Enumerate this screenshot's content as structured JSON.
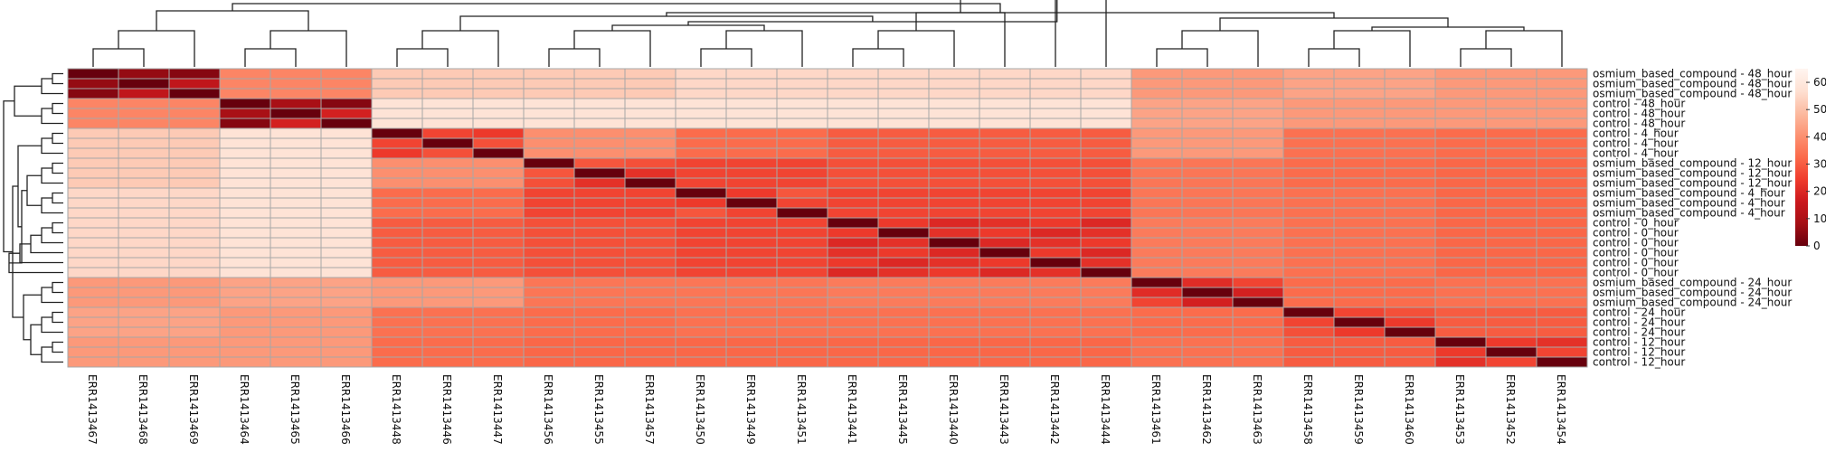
{
  "chart_data": {
    "type": "heatmap",
    "title": "",
    "columns": [
      "ERR1413467",
      "ERR1413468",
      "ERR1413469",
      "ERR1413464",
      "ERR1413465",
      "ERR1413466",
      "ERR1413448",
      "ERR1413446",
      "ERR1413447",
      "ERR1413456",
      "ERR1413455",
      "ERR1413457",
      "ERR1413450",
      "ERR1413449",
      "ERR1413451",
      "ERR1413441",
      "ERR1413445",
      "ERR1413440",
      "ERR1413443",
      "ERR1413442",
      "ERR1413444",
      "ERR1413461",
      "ERR1413462",
      "ERR1413463",
      "ERR1413458",
      "ERR1413459",
      "ERR1413460",
      "ERR1413453",
      "ERR1413452",
      "ERR1413454"
    ],
    "rows": [
      "osmium_based_compound - 48_hour",
      "osmium_based_compound - 48_hour",
      "osmium_based_compound - 48_hour",
      "control - 48_hour",
      "control - 48_hour",
      "control - 48_hour",
      "control - 4_hour",
      "control - 4_hour",
      "control - 4_hour",
      "osmium_based_compound - 12_hour",
      "osmium_based_compound - 12_hour",
      "osmium_based_compound - 12_hour",
      "osmium_based_compound - 4_hour",
      "osmium_based_compound - 4_hour",
      "osmium_based_compound - 4_hour",
      "control - 0_hour",
      "control - 0_hour",
      "control - 0_hour",
      "control - 0_hour",
      "control - 0_hour",
      "control - 0_hour",
      "osmium_based_compound - 24_hour",
      "osmium_based_compound - 24_hour",
      "osmium_based_compound - 24_hour",
      "control - 24_hour",
      "control - 24_hour",
      "control - 24_hour",
      "control - 12_hour",
      "control - 12_hour",
      "control - 12_hour"
    ],
    "group_sizes": [
      3,
      3,
      3,
      3,
      3,
      6,
      3,
      3,
      3
    ],
    "block_values": [
      [
        0,
        38,
        52,
        52,
        55,
        55,
        42,
        44,
        42
      ],
      [
        38,
        0,
        58,
        58,
        58,
        58,
        44,
        42,
        42
      ],
      [
        52,
        58,
        0,
        40,
        33,
        30,
        42,
        34,
        33
      ],
      [
        52,
        58,
        40,
        0,
        26,
        28,
        35,
        33,
        32
      ],
      [
        55,
        58,
        33,
        26,
        0,
        26,
        35,
        34,
        32
      ],
      [
        55,
        58,
        30,
        28,
        26,
        0,
        36,
        34,
        32
      ],
      [
        42,
        44,
        42,
        35,
        35,
        36,
        0,
        33,
        34
      ],
      [
        44,
        42,
        34,
        33,
        34,
        34,
        33,
        0,
        30
      ],
      [
        42,
        42,
        33,
        32,
        32,
        32,
        34,
        30,
        0
      ]
    ],
    "intra_group_values": [
      [
        10,
        2,
        0
      ],
      [
        14,
        5,
        0
      ],
      [
        24,
        22,
        20
      ],
      [
        18,
        25,
        24
      ],
      [
        22,
        20,
        25
      ],
      [
        18,
        20,
        16
      ],
      [
        14,
        17,
        22
      ],
      [
        20,
        22,
        24
      ],
      [
        22,
        20,
        18
      ]
    ],
    "color_scale": {
      "min": 0,
      "max": 65,
      "stops": [
        "#67000d",
        "#a50f15",
        "#cb181d",
        "#ef3b2c",
        "#fb6a4a",
        "#fc9272",
        "#fcbba1",
        "#fee0d2",
        "#fff5f0"
      ]
    },
    "legend_ticks": [
      0,
      10,
      20,
      30,
      40,
      50,
      60
    ],
    "legend_placement": "right"
  }
}
